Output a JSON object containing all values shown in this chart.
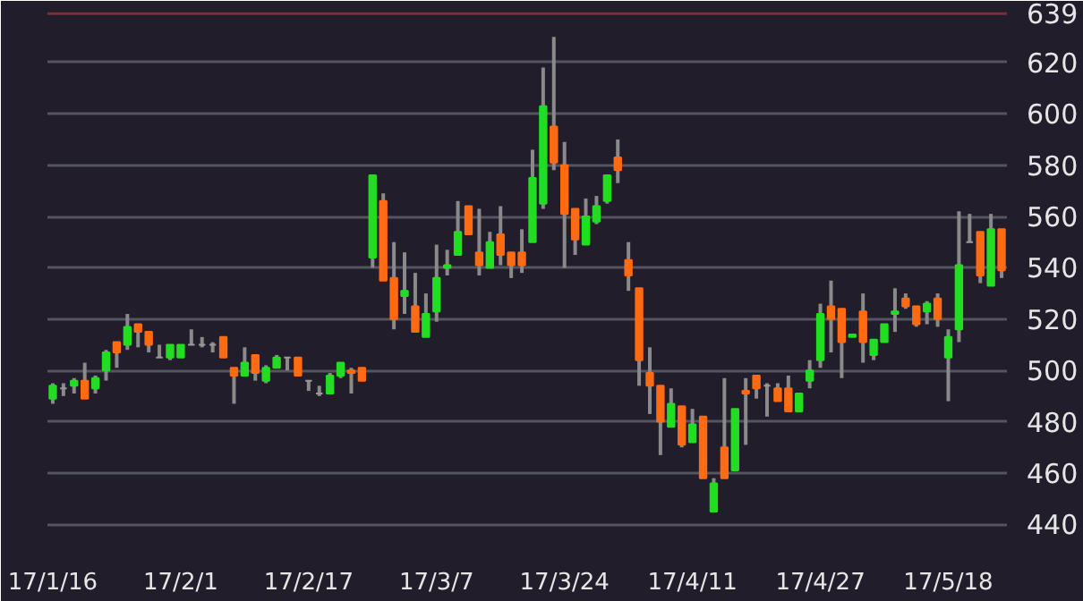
{
  "chart_data": {
    "type": "candlestick",
    "categories": [
      "17/1/16",
      null,
      null,
      null,
      null,
      null,
      null,
      null,
      null,
      null,
      null,
      null,
      "17/2/1",
      null,
      null,
      null,
      null,
      null,
      null,
      null,
      null,
      null,
      null,
      null,
      "17/2/17",
      null,
      null,
      null,
      null,
      null,
      null,
      null,
      null,
      null,
      null,
      null,
      "17/3/7",
      null,
      null,
      null,
      null,
      null,
      null,
      null,
      null,
      null,
      null,
      null,
      "17/3/24",
      null,
      null,
      null,
      null,
      null,
      null,
      null,
      null,
      null,
      null,
      null,
      "17/4/11",
      null,
      null,
      null,
      null,
      null,
      null,
      null,
      null,
      null,
      null,
      null,
      "17/4/27",
      null,
      null,
      null,
      null,
      null,
      null,
      null,
      null,
      null,
      null,
      null,
      "17/5/18",
      null,
      null,
      null,
      null,
      null
    ],
    "ohlc": [
      [
        489,
        495,
        487,
        494
      ],
      [
        493,
        495,
        490,
        493
      ],
      [
        494,
        497,
        491,
        496
      ],
      [
        496,
        503,
        489,
        489
      ],
      [
        493,
        498,
        491,
        497
      ],
      [
        500,
        508,
        496,
        507
      ],
      [
        511,
        511,
        501,
        507
      ],
      [
        510,
        522,
        508,
        517
      ],
      [
        518,
        518,
        509,
        515
      ],
      [
        515,
        515,
        507,
        510
      ],
      [
        505,
        510,
        505,
        505
      ],
      [
        505,
        510,
        504,
        510
      ],
      [
        505,
        510,
        505,
        510
      ],
      [
        510,
        516,
        510,
        510
      ],
      [
        510,
        513,
        509,
        510
      ],
      [
        510,
        511,
        507,
        510
      ],
      [
        513,
        513,
        505,
        505
      ],
      [
        501,
        501,
        487,
        498
      ],
      [
        498,
        509,
        498,
        503
      ],
      [
        506,
        506,
        496,
        499
      ],
      [
        496,
        502,
        495,
        501
      ],
      [
        501,
        506,
        501,
        505
      ],
      [
        505,
        505,
        500,
        505
      ],
      [
        505,
        505,
        498,
        498
      ],
      [
        496,
        496,
        492,
        496
      ],
      [
        491,
        494,
        490,
        491
      ],
      [
        491,
        499,
        491,
        498
      ],
      [
        498,
        503,
        497,
        503
      ],
      [
        500,
        501,
        491,
        499
      ],
      [
        501,
        501,
        496,
        496
      ],
      [
        544,
        576,
        540,
        576
      ],
      [
        566,
        569,
        535,
        535
      ],
      [
        536,
        550,
        516,
        520
      ],
      [
        529,
        546,
        522,
        531
      ],
      [
        525,
        538,
        515,
        515
      ],
      [
        513,
        530,
        513,
        522
      ],
      [
        523,
        549,
        519,
        536
      ],
      [
        540,
        547,
        537,
        541
      ],
      [
        545,
        566,
        545,
        554
      ],
      [
        564,
        564,
        553,
        553
      ],
      [
        546,
        563,
        537,
        541
      ],
      [
        540,
        554,
        540,
        550
      ],
      [
        553,
        564,
        541,
        545
      ],
      [
        546,
        546,
        536,
        541
      ],
      [
        546,
        555,
        538,
        541
      ],
      [
        550,
        586,
        550,
        575
      ],
      [
        565,
        618,
        563,
        603
      ],
      [
        595,
        630,
        578,
        581
      ],
      [
        580,
        589,
        540,
        561
      ],
      [
        563,
        563,
        545,
        551
      ],
      [
        549,
        567,
        549,
        560
      ],
      [
        558,
        568,
        557,
        564
      ],
      [
        566,
        576,
        565,
        576
      ],
      [
        583,
        590,
        573,
        578
      ],
      [
        543,
        550,
        531,
        537
      ],
      [
        532,
        532,
        494,
        504
      ],
      [
        499,
        509,
        483,
        494
      ],
      [
        494,
        494,
        467,
        480
      ],
      [
        478,
        493,
        478,
        487
      ],
      [
        486,
        486,
        470,
        471
      ],
      [
        472,
        485,
        472,
        479
      ],
      [
        482,
        482,
        458,
        458
      ],
      [
        445,
        458,
        445,
        456
      ],
      [
        470,
        497,
        458,
        458
      ],
      [
        461,
        485,
        461,
        485
      ],
      [
        492,
        497,
        471,
        491
      ],
      [
        498,
        498,
        489,
        493
      ],
      [
        494,
        495,
        482,
        494
      ],
      [
        493,
        495,
        488,
        488
      ],
      [
        493,
        498,
        484,
        484
      ],
      [
        484,
        491,
        484,
        491
      ],
      [
        496,
        504,
        493,
        500
      ],
      [
        504,
        526,
        501,
        522
      ],
      [
        525,
        535,
        507,
        520
      ],
      [
        524,
        524,
        497,
        511
      ],
      [
        513,
        514,
        513,
        514
      ],
      [
        523,
        530,
        503,
        511
      ],
      [
        506,
        512,
        504,
        512
      ],
      [
        511,
        518,
        511,
        518
      ],
      [
        522,
        532,
        515,
        523
      ],
      [
        528,
        530,
        524,
        525
      ],
      [
        525,
        525,
        517,
        518
      ],
      [
        523,
        527,
        518,
        526
      ],
      [
        528,
        530,
        517,
        520
      ],
      [
        505,
        516,
        488,
        513
      ],
      [
        516,
        562,
        511,
        541
      ],
      [
        550,
        561,
        550,
        550
      ],
      [
        554,
        554,
        534,
        537
      ],
      [
        533,
        561,
        533,
        555
      ],
      [
        555,
        555,
        536,
        539
      ]
    ],
    "colors": [
      "#22dd22",
      "#9a9a9a",
      "#22dd22",
      "#ff6a13",
      "#22dd22",
      "#22dd22",
      "#ff6a13",
      "#22dd22",
      "#ff6a13",
      "#ff6a13",
      "#9a9a9a",
      "#22dd22",
      "#22dd22",
      "#9a9a9a",
      "#9a9a9a",
      "#9a9a9a",
      "#ff6a13",
      "#ff6a13",
      "#22dd22",
      "#ff6a13",
      "#22dd22",
      "#22dd22",
      "#9a9a9a",
      "#ff6a13",
      "#9a9a9a",
      "#9a9a9a",
      "#22dd22",
      "#22dd22",
      "#ff6a13",
      "#ff6a13",
      "#22dd22",
      "#ff6a13",
      "#ff6a13",
      "#22dd22",
      "#ff6a13",
      "#22dd22",
      "#22dd22",
      "#22dd22",
      "#22dd22",
      "#ff6a13",
      "#ff6a13",
      "#22dd22",
      "#ff6a13",
      "#ff6a13",
      "#ff6a13",
      "#22dd22",
      "#22dd22",
      "#ff6a13",
      "#ff6a13",
      "#ff6a13",
      "#22dd22",
      "#22dd22",
      "#22dd22",
      "#ff6a13",
      "#ff6a13",
      "#ff6a13",
      "#ff6a13",
      "#ff6a13",
      "#22dd22",
      "#ff6a13",
      "#22dd22",
      "#ff6a13",
      "#22dd22",
      "#ff6a13",
      "#22dd22",
      "#ff6a13",
      "#ff6a13",
      "#9a9a9a",
      "#ff6a13",
      "#ff6a13",
      "#22dd22",
      "#22dd22",
      "#22dd22",
      "#ff6a13",
      "#ff6a13",
      "#22dd22",
      "#ff6a13",
      "#22dd22",
      "#22dd22",
      "#22dd22",
      "#ff6a13",
      "#ff6a13",
      "#22dd22",
      "#ff6a13",
      "#22dd22",
      "#22dd22",
      "#9a9a9a",
      "#ff6a13",
      "#22dd22",
      "#ff6a13"
    ],
    "ylim": [
      430,
      644
    ],
    "yticks": [
      440,
      460,
      480,
      500,
      520,
      540,
      560,
      580,
      600,
      620
    ],
    "grid": "y",
    "ref_lines": [
      {
        "axis": "y",
        "value": 639,
        "label": "639",
        "color": "#7a2f3a"
      }
    ]
  }
}
